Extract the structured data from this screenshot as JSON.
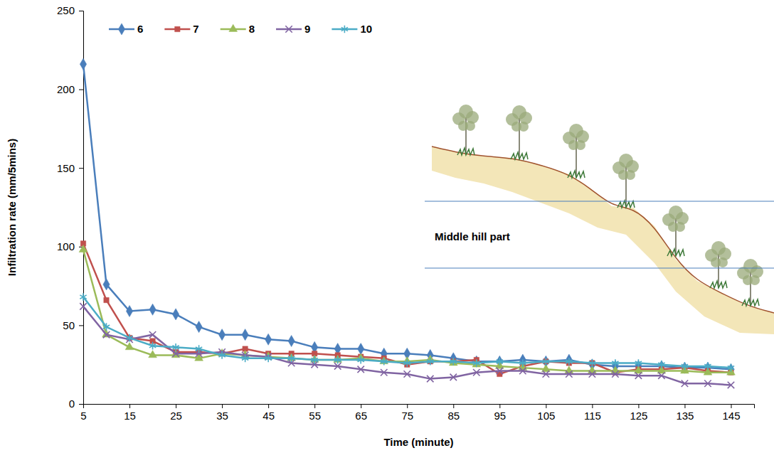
{
  "chart_data": {
    "type": "line",
    "x_label": "Time (minute)",
    "y_label": "Infiltration rate (mm/5mins)",
    "annotation": "Middle hill part",
    "x": [
      5,
      10,
      15,
      20,
      25,
      30,
      35,
      40,
      45,
      50,
      55,
      60,
      65,
      70,
      75,
      80,
      85,
      90,
      95,
      100,
      105,
      110,
      115,
      120,
      125,
      130,
      135,
      140,
      145
    ],
    "xlim": [
      5,
      150
    ],
    "xticks": [
      5,
      15,
      25,
      35,
      45,
      55,
      65,
      75,
      85,
      95,
      105,
      115,
      125,
      135,
      145
    ],
    "ylim": [
      0,
      250
    ],
    "yticks": [
      0,
      50,
      100,
      150,
      200,
      250
    ],
    "grid": false,
    "legend": "top-left",
    "series": [
      {
        "name": "6",
        "color": "#4a7ebb",
        "marker": "diamond",
        "values": [
          216,
          76,
          59,
          60,
          57,
          49,
          44,
          44,
          41,
          40,
          36,
          35,
          35,
          32,
          32,
          31,
          29,
          27,
          27,
          28,
          27,
          28,
          25,
          24,
          24,
          24,
          23,
          23,
          22
        ]
      },
      {
        "name": "7",
        "color": "#c0504d",
        "marker": "square",
        "values": [
          102,
          66,
          42,
          40,
          33,
          33,
          32,
          35,
          32,
          32,
          32,
          31,
          30,
          29,
          25,
          27,
          27,
          28,
          19,
          24,
          27,
          26,
          26,
          20,
          22,
          22,
          23,
          21,
          20
        ]
      },
      {
        "name": "8",
        "color": "#9bbb59",
        "marker": "triangle",
        "values": [
          98,
          44,
          36,
          31,
          31,
          29,
          32,
          31,
          30,
          29,
          28,
          28,
          29,
          27,
          27,
          28,
          26,
          25,
          24,
          23,
          22,
          21,
          21,
          21,
          21,
          21,
          21,
          20,
          20
        ]
      },
      {
        "name": "9",
        "color": "#8064a2",
        "marker": "x",
        "values": [
          62,
          44,
          41,
          44,
          32,
          32,
          33,
          31,
          30,
          26,
          25,
          24,
          22,
          20,
          19,
          16,
          17,
          20,
          21,
          21,
          19,
          19,
          19,
          19,
          18,
          18,
          13,
          13,
          12
        ]
      },
      {
        "name": "10",
        "color": "#4bacc6",
        "marker": "asterisk",
        "values": [
          68,
          49,
          42,
          37,
          36,
          35,
          31,
          29,
          29,
          29,
          28,
          28,
          28,
          27,
          26,
          27,
          27,
          26,
          27,
          26,
          27,
          27,
          26,
          26,
          26,
          25,
          24,
          24,
          23
        ]
      }
    ]
  }
}
